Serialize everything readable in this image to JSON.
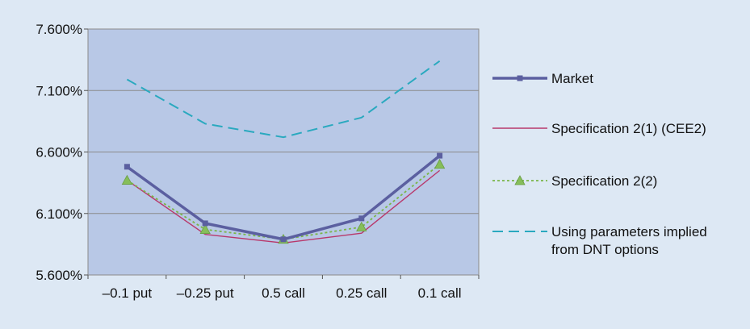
{
  "chart_data": {
    "type": "line",
    "categories": [
      "–0.1 put",
      "–0.25 put",
      "0.5 call",
      "0.25 call",
      "0.1 call"
    ],
    "ylim": [
      0.056,
      0.076
    ],
    "yticks": [
      "5.600%",
      "6.100%",
      "6.600%",
      "7.100%",
      "7.600%"
    ],
    "grid": true,
    "legend_position": "right",
    "series": [
      {
        "name": "Market",
        "values": [
          0.0648,
          0.0602,
          0.0589,
          0.0606,
          0.0657
        ],
        "color": "#5b5fa0",
        "style": "solid",
        "marker": "square"
      },
      {
        "name": "Specification 2(1) (CEE2)",
        "values": [
          0.0637,
          0.0593,
          0.0586,
          0.0594,
          0.0645
        ],
        "color": "#b8386b",
        "style": "solid",
        "marker": "none"
      },
      {
        "name": "Specification 2(2)",
        "values": [
          0.0637,
          0.0597,
          0.0589,
          0.0599,
          0.065
        ],
        "color": "#7ab648",
        "style": "dotted",
        "marker": "triangle"
      },
      {
        "name": "Using parameters implied\nfrom DNT options",
        "values": [
          0.0719,
          0.0683,
          0.0672,
          0.0688,
          0.0734
        ],
        "color": "#2aa9bf",
        "style": "dashed",
        "marker": "none"
      }
    ]
  }
}
